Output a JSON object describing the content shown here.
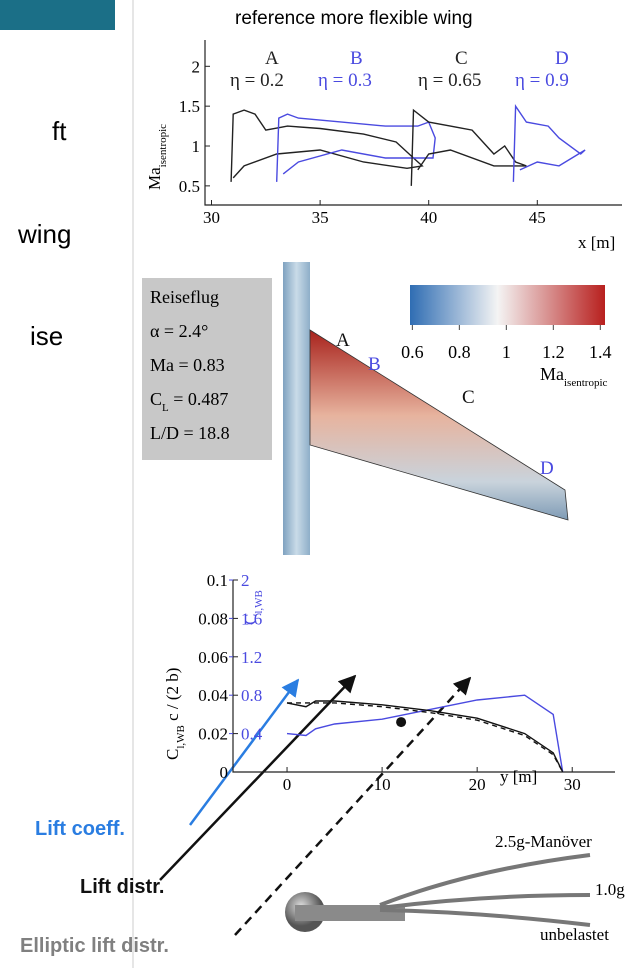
{
  "chart_data": [
    {
      "type": "line",
      "title": "reference more flexible wing",
      "xlabel": "x [m]",
      "ylabel": {
        "main": "Ma",
        "sub": "isentropic"
      },
      "xlim": [
        29.7,
        48.9
      ],
      "ylim": [
        0.26,
        2.33
      ],
      "xticks": [
        30,
        35,
        40,
        45
      ],
      "yticks": [
        0.5,
        1,
        1.5,
        2
      ],
      "series": [
        {
          "name": "A",
          "label": "η = 0.2",
          "color": "#222222",
          "x": [
            30.9,
            31,
            31.5,
            32,
            32.5,
            33.5,
            35,
            37,
            38.5,
            39.3,
            39.7,
            39,
            37,
            35,
            33,
            31.5,
            31
          ],
          "values": [
            0.55,
            1.4,
            1.45,
            1.4,
            1.2,
            1.25,
            1.22,
            1.15,
            1.05,
            0.85,
            0.75,
            0.72,
            0.8,
            0.95,
            0.9,
            0.75,
            0.6
          ]
        },
        {
          "name": "B",
          "label": "η = 0.3",
          "color": "#4a4ae0",
          "x": [
            33,
            33.1,
            33.5,
            34,
            36,
            38,
            39.5,
            40,
            40.3,
            40.2,
            38,
            36,
            34,
            33.3
          ],
          "values": [
            0.55,
            1.35,
            1.4,
            1.35,
            1.3,
            1.25,
            1.25,
            1.3,
            1.1,
            0.85,
            0.85,
            0.95,
            0.8,
            0.65
          ]
        },
        {
          "name": "C",
          "label": "η = 0.65",
          "color": "#222222",
          "x": [
            39.2,
            39.3,
            40,
            41,
            42,
            43,
            43.5,
            44,
            44.5,
            43,
            41,
            40,
            39.5
          ],
          "values": [
            0.5,
            1.45,
            1.3,
            1.25,
            1.2,
            0.9,
            1.0,
            0.8,
            0.75,
            0.75,
            0.95,
            0.9,
            0.7
          ]
        },
        {
          "name": "D",
          "label": "η = 0.9",
          "color": "#4a4ae0",
          "x": [
            43.9,
            44,
            44.5,
            45.5,
            46,
            47,
            47.2,
            46,
            45,
            44.2
          ],
          "values": [
            0.55,
            1.5,
            1.3,
            1.25,
            1.1,
            0.9,
            0.95,
            0.75,
            0.8,
            0.7
          ]
        }
      ]
    },
    {
      "type": "line",
      "xlabel": "y [m]",
      "ylabel": {
        "main": "C",
        "sub": "l,WB",
        "rest": " c / (2 b)"
      },
      "y2label": {
        "main": "C",
        "sub": "l,WB"
      },
      "xlim": [
        -6,
        34.5
      ],
      "ylim": [
        0,
        0.1
      ],
      "y2lim": [
        0,
        2
      ],
      "xticks": [
        0,
        10,
        20,
        30
      ],
      "yticks": [
        0,
        0.02,
        0.04,
        0.06,
        0.08,
        0.1
      ],
      "y2ticks": [
        0.4,
        0.8,
        1.2,
        1.6,
        2
      ],
      "series": [
        {
          "name": "Lift coeff.",
          "color": "#4a4ae0",
          "axis": "y2",
          "x": [
            0,
            2,
            3,
            5,
            10,
            15,
            20,
            25,
            28,
            29
          ],
          "values": [
            0.4,
            0.38,
            0.45,
            0.5,
            0.55,
            0.65,
            0.75,
            0.8,
            0.6,
            0
          ]
        },
        {
          "name": "Lift distr.",
          "color": "#111111",
          "x": [
            0,
            2,
            3,
            5,
            10,
            15,
            20,
            25,
            28,
            29
          ],
          "values": [
            0.036,
            0.034,
            0.037,
            0.037,
            0.035,
            0.032,
            0.028,
            0.02,
            0.01,
            0
          ]
        },
        {
          "name": "Elliptic lift distr.",
          "color": "#111111",
          "dash": true,
          "x": [
            0,
            5,
            10,
            15,
            20,
            25,
            28,
            29
          ],
          "values": [
            0.036,
            0.036,
            0.034,
            0.031,
            0.027,
            0.019,
            0.009,
            0
          ]
        }
      ],
      "marker": {
        "x": 12,
        "y": 0.026
      }
    }
  ],
  "left_text": [
    "ft",
    "wing",
    "ise"
  ],
  "wing": {
    "flight_box": [
      "Reiseflug",
      "α = 2.4°",
      "Ma = 0.83",
      {
        "main": "C",
        "sub": "L",
        "rest": " = 0.487"
      },
      "L/D = 18.8"
    ],
    "sections": [
      "A",
      "B",
      "C",
      "D"
    ],
    "colorbar": {
      "lim": [
        0.59,
        1.42
      ],
      "ticks": [
        0.6,
        0.8,
        1,
        1.2,
        1.4
      ],
      "label": {
        "main": "Ma",
        "sub": "isentropic"
      }
    }
  },
  "deflection": [
    "2.5g-Manöver",
    "1.0g",
    "unbelastet"
  ]
}
